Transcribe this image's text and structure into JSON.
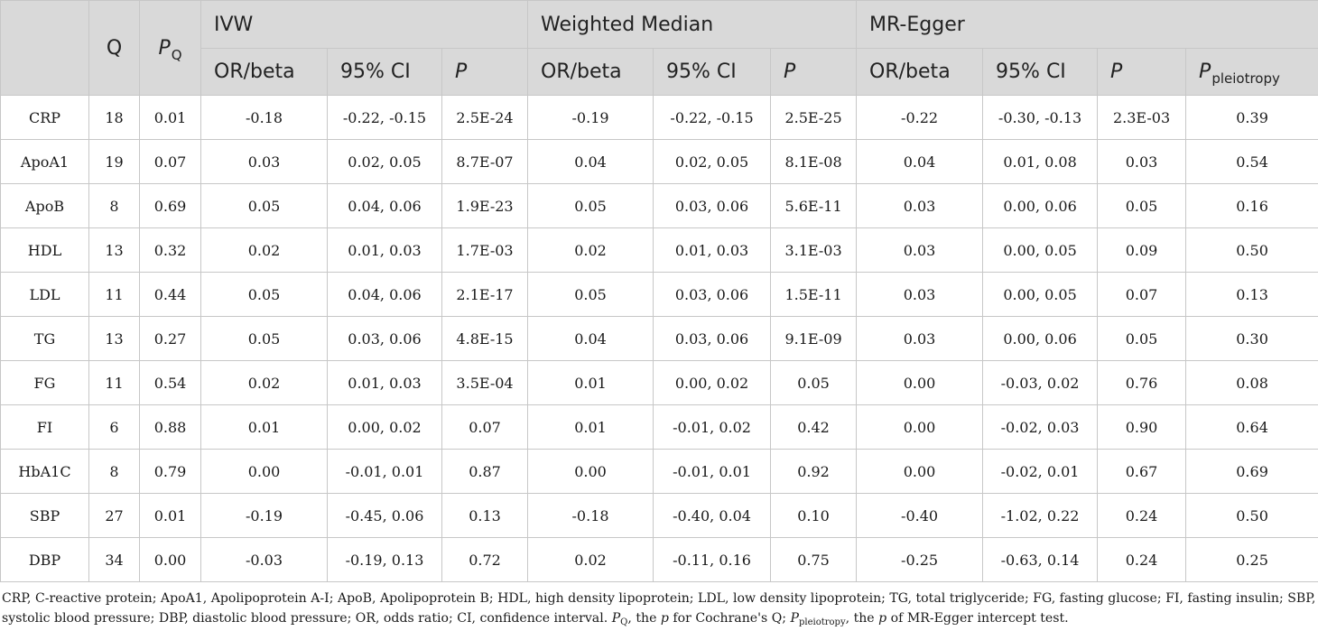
{
  "table": {
    "headers": {
      "q": "Q",
      "pq_main": "P",
      "pq_sub": "Q",
      "groups": [
        "IVW",
        "Weighted Median",
        "MR-Egger"
      ],
      "or_beta": "OR/beta",
      "ci": "95% CI",
      "p": "P",
      "ppleio_main": "P",
      "ppleio_sub": "pleiotropy"
    },
    "rows": [
      {
        "trait": "CRP",
        "q": "18",
        "pq": "0.01",
        "ivw_or": "-0.18",
        "ivw_ci": "-0.22, -0.15",
        "ivw_p": "2.5E-24",
        "wm_or": "-0.19",
        "wm_ci": "-0.22, -0.15",
        "wm_p": "2.5E-25",
        "egger_or": "-0.22",
        "egger_ci": "-0.30, -0.13",
        "egger_p": "2.3E-03",
        "ppleio": "0.39"
      },
      {
        "trait": "ApoA1",
        "q": "19",
        "pq": "0.07",
        "ivw_or": "0.03",
        "ivw_ci": "0.02, 0.05",
        "ivw_p": "8.7E-07",
        "wm_or": "0.04",
        "wm_ci": "0.02, 0.05",
        "wm_p": "8.1E-08",
        "egger_or": "0.04",
        "egger_ci": "0.01, 0.08",
        "egger_p": "0.03",
        "ppleio": "0.54"
      },
      {
        "trait": "ApoB",
        "q": "8",
        "pq": "0.69",
        "ivw_or": "0.05",
        "ivw_ci": "0.04, 0.06",
        "ivw_p": "1.9E-23",
        "wm_or": "0.05",
        "wm_ci": "0.03, 0.06",
        "wm_p": "5.6E-11",
        "egger_or": "0.03",
        "egger_ci": "0.00, 0.06",
        "egger_p": "0.05",
        "ppleio": "0.16"
      },
      {
        "trait": "HDL",
        "q": "13",
        "pq": "0.32",
        "ivw_or": "0.02",
        "ivw_ci": "0.01, 0.03",
        "ivw_p": "1.7E-03",
        "wm_or": "0.02",
        "wm_ci": "0.01, 0.03",
        "wm_p": "3.1E-03",
        "egger_or": "0.03",
        "egger_ci": "0.00, 0.05",
        "egger_p": "0.09",
        "ppleio": "0.50"
      },
      {
        "trait": "LDL",
        "q": "11",
        "pq": "0.44",
        "ivw_or": "0.05",
        "ivw_ci": "0.04, 0.06",
        "ivw_p": "2.1E-17",
        "wm_or": "0.05",
        "wm_ci": "0.03, 0.06",
        "wm_p": "1.5E-11",
        "egger_or": "0.03",
        "egger_ci": "0.00, 0.05",
        "egger_p": "0.07",
        "ppleio": "0.13"
      },
      {
        "trait": "TG",
        "q": "13",
        "pq": "0.27",
        "ivw_or": "0.05",
        "ivw_ci": "0.03, 0.06",
        "ivw_p": "4.8E-15",
        "wm_or": "0.04",
        "wm_ci": "0.03, 0.06",
        "wm_p": "9.1E-09",
        "egger_or": "0.03",
        "egger_ci": "0.00, 0.06",
        "egger_p": "0.05",
        "ppleio": "0.30"
      },
      {
        "trait": "FG",
        "q": "11",
        "pq": "0.54",
        "ivw_or": "0.02",
        "ivw_ci": "0.01, 0.03",
        "ivw_p": "3.5E-04",
        "wm_or": "0.01",
        "wm_ci": "0.00, 0.02",
        "wm_p": "0.05",
        "egger_or": "0.00",
        "egger_ci": "-0.03, 0.02",
        "egger_p": "0.76",
        "ppleio": "0.08"
      },
      {
        "trait": "FI",
        "q": "6",
        "pq": "0.88",
        "ivw_or": "0.01",
        "ivw_ci": "0.00, 0.02",
        "ivw_p": "0.07",
        "wm_or": "0.01",
        "wm_ci": "-0.01, 0.02",
        "wm_p": "0.42",
        "egger_or": "0.00",
        "egger_ci": "-0.02, 0.03",
        "egger_p": "0.90",
        "ppleio": "0.64"
      },
      {
        "trait": "HbA1C",
        "q": "8",
        "pq": "0.79",
        "ivw_or": "0.00",
        "ivw_ci": "-0.01, 0.01",
        "ivw_p": "0.87",
        "wm_or": "0.00",
        "wm_ci": "-0.01, 0.01",
        "wm_p": "0.92",
        "egger_or": "0.00",
        "egger_ci": "-0.02, 0.01",
        "egger_p": "0.67",
        "ppleio": "0.69"
      },
      {
        "trait": "SBP",
        "q": "27",
        "pq": "0.01",
        "ivw_or": "-0.19",
        "ivw_ci": "-0.45, 0.06",
        "ivw_p": "0.13",
        "wm_or": "-0.18",
        "wm_ci": "-0.40, 0.04",
        "wm_p": "0.10",
        "egger_or": "-0.40",
        "egger_ci": "-1.02, 0.22",
        "egger_p": "0.24",
        "ppleio": "0.50"
      },
      {
        "trait": "DBP",
        "q": "34",
        "pq": "0.00",
        "ivw_or": "-0.03",
        "ivw_ci": "-0.19, 0.13",
        "ivw_p": "0.72",
        "wm_or": "0.02",
        "wm_ci": "-0.11, 0.16",
        "wm_p": "0.75",
        "egger_or": "-0.25",
        "egger_ci": "-0.63, 0.14",
        "egger_p": "0.24",
        "ppleio": "0.25"
      }
    ]
  },
  "footnote": {
    "text": "CRP, C-reactive protein; ApoA1, Apolipoprotein A-I; ApoB, Apolipoprotein B; HDL, high density lipoprotein; LDL, low density lipoprotein; TG, total triglyceride; FG, fasting glucose; FI, fasting insulin; SBP, systolic blood pressure; DBP, diastolic blood pressure; OR, odds ratio; CI, confidence interval.",
    "pq_main": "P",
    "pq_sub": "Q",
    "pq_desc": ", the ",
    "pq_p": "p",
    "pq_tail": " for Cochrane's Q; ",
    "pp_main": "P",
    "pp_sub": "pleiotropy",
    "pp_desc": ", the ",
    "pp_p": "p",
    "pp_tail": " of MR-Egger intercept test."
  }
}
